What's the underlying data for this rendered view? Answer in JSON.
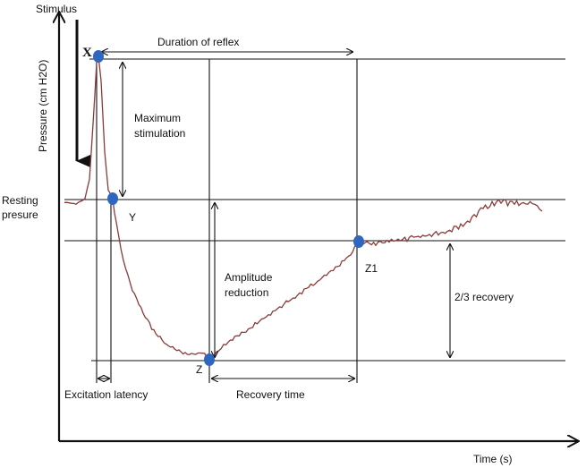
{
  "labels": {
    "stimulus": "Stimulus",
    "y_axis": "Pressure (cm H2O)",
    "x_axis": "Time (s)",
    "resting_pressure_line1": "Resting",
    "resting_pressure_line2": "presure",
    "duration_of_reflex": "Duration of reflex",
    "maximum_line1": "Maximum",
    "maximum_line2": "stimulation",
    "amplitude_line1": "Amplitude",
    "amplitude_line2": "reduction",
    "two_thirds_recovery": "2/3 recovery",
    "excitation_latency": "Excitation latency",
    "recovery_time": "Recovery time"
  },
  "points": {
    "x": "X",
    "y": "Y",
    "z": "Z",
    "z1": "Z1"
  },
  "colors": {
    "trace": "#8b3a3a",
    "point": "#2f67c0",
    "ink": "#111111"
  }
}
